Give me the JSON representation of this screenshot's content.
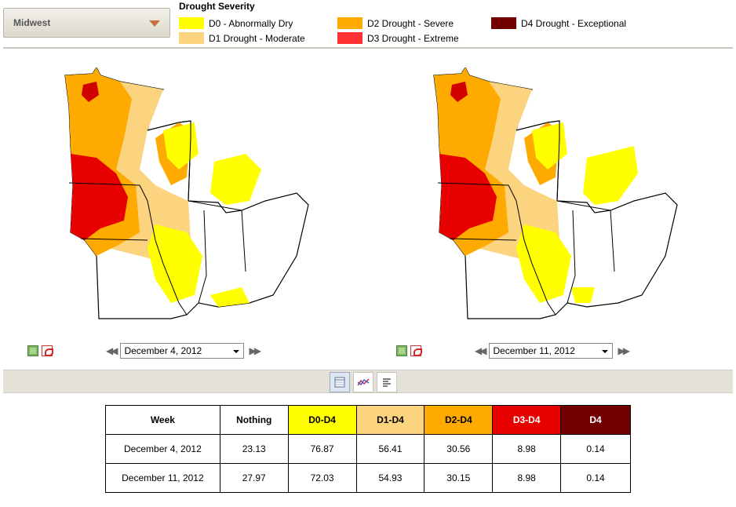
{
  "region": {
    "selected": "Midwest"
  },
  "legend": {
    "title": "Drought Severity",
    "items": [
      {
        "label": "D0 - Abnormally Dry",
        "color": "#ffff00"
      },
      {
        "label": "D1 Drought - Moderate",
        "color": "#fcd37f"
      },
      {
        "label": "D2 Drought - Severe",
        "color": "#ffaa00"
      },
      {
        "label": "D3 Drought - Extreme",
        "color": "#ff3333"
      },
      {
        "label": "D4 Drought - Exceptional",
        "color": "#730000"
      }
    ]
  },
  "maps": [
    {
      "date": "December 4, 2012"
    },
    {
      "date": "December 11, 2012"
    }
  ],
  "toolbar": {
    "icons": [
      "table-view-icon",
      "chart-view-icon",
      "text-view-icon"
    ]
  },
  "table": {
    "headers": [
      "Week",
      "Nothing",
      "D0-D4",
      "D1-D4",
      "D2-D4",
      "D3-D4",
      "D4"
    ],
    "header_colors": [
      "#ffffff",
      "#ffffff",
      "#ffff00",
      "#fcd37f",
      "#ffaa00",
      "#e60000",
      "#730000"
    ],
    "rows": [
      [
        "December 4, 2012",
        "23.13",
        "76.87",
        "56.41",
        "30.56",
        "8.98",
        "0.14"
      ],
      [
        "December 11, 2012",
        "27.97",
        "72.03",
        "54.93",
        "30.15",
        "8.98",
        "0.14"
      ]
    ]
  }
}
